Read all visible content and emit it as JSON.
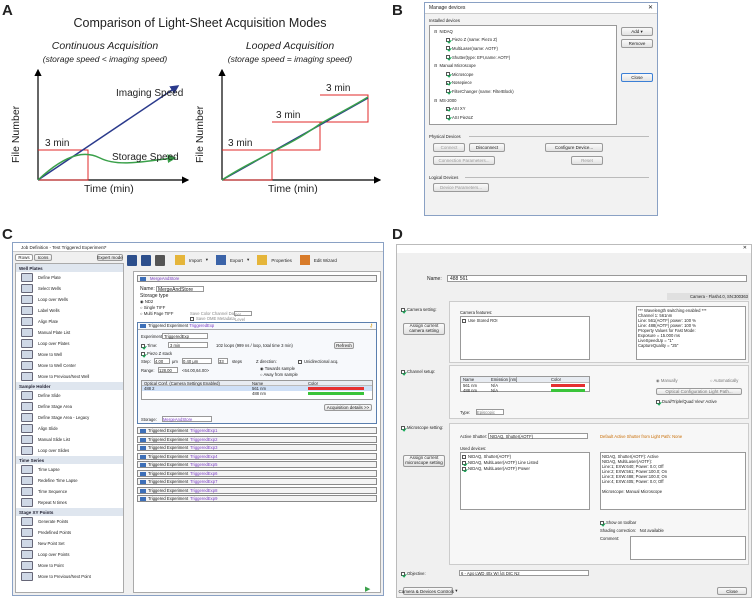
{
  "panels": {
    "a": "A",
    "b": "B",
    "c": "C",
    "d": "D"
  },
  "panelA": {
    "title": "Comparison of Light-Sheet Acquisition Modes",
    "left": {
      "mode": "Continuous Acquisition",
      "cond": "(storage speed < imaging speed)",
      "imaging": "Imaging Speed",
      "storage": "Storage Speed",
      "t1": "3 min"
    },
    "right": {
      "mode": "Looped Acquisition",
      "cond": "(storage speed = imaging speed)",
      "t1": "3 min",
      "t2": "3 min",
      "t3": "3 min"
    },
    "xlabel": "Time (min)",
    "ylabel": "File Number",
    "colors": {
      "imaging": "#2b3a8c",
      "storage": "#3aa04a",
      "steps": "#e02828"
    }
  },
  "panelB": {
    "title": "Manage devices",
    "installed": "Installed devices",
    "tree": [
      {
        "label": "NIDAQ",
        "level": 0
      },
      {
        "label": "Piezo Z (name: Piezo Z)",
        "level": 1
      },
      {
        "label": "MultiLaser(name: AOTF)",
        "level": 1
      },
      {
        "label": "Shutter(type: EPI,name: AOTF)",
        "level": 1
      },
      {
        "label": "Manual Microscope",
        "level": 0
      },
      {
        "label": "Microscope",
        "level": 1
      },
      {
        "label": "Nosepiece",
        "level": 1
      },
      {
        "label": "FilterChanger (name: FilterBlock)",
        "level": 1
      },
      {
        "label": "MS-2000",
        "level": 0
      },
      {
        "label": "ASI XY",
        "level": 1
      },
      {
        "label": "ASI PiezoZ",
        "level": 1
      }
    ],
    "add": "Add",
    "remove": "Remove",
    "close": "Close",
    "physical": "Physical Devices",
    "connect": "Connect",
    "disconnect": "Disconnect",
    "configure": "Configure Device...",
    "connparams": "Connection Parameters...",
    "reset": "Reset",
    "logical": "Logical Devices",
    "devparams": "Device Parameters..."
  },
  "panelC": {
    "title": "Job Definition - Test Triggered Experiment*",
    "tabs": [
      "Rows",
      "Icons"
    ],
    "expert": "Expert mode",
    "toolbar": {
      "import": "Import",
      "export": "Export",
      "properties": "Properties",
      "edit": "Edit Wizard"
    },
    "sections": [
      {
        "name": "Well Plates",
        "items": [
          "Define Plate",
          "Select Wells",
          "Loop over Wells",
          "Label Wells",
          "Align Plate",
          "Manual Plate List",
          "Loop over Plates",
          "Move to Well",
          "Move to Well Center",
          "Move to Previous/Next Well"
        ]
      },
      {
        "name": "Sample Holder",
        "items": [
          "Define Slide",
          "Define Stage Area",
          "Define Stage Area - Legacy",
          "Align Slide",
          "Manual Slide List",
          "Loop over Slides"
        ]
      },
      {
        "name": "Time Series",
        "items": [
          "Time Lapse",
          "Redefine Time Lapse",
          "Time Sequence",
          "Repeat N times"
        ]
      },
      {
        "name": "Stage XY Points",
        "items": [
          "Generate Points",
          "Predefined Points",
          "New Point Set",
          "Loop over Points",
          "Move to Point",
          "Move to Previous/Next Point"
        ]
      }
    ],
    "merge": "MergeAndStore",
    "name_label": "Name:",
    "name_value": "MergeAndStore",
    "storage_type": "Storage type",
    "nd2": "ND2",
    "single": "Single TIFF",
    "multi": "Multi Page TIFF",
    "save_color": "Save Color Channel Data",
    "ome": "Save OME Metadata",
    "perlevel": "per Level",
    "trig_title": "Triggered Experiment",
    "trig_name": "TriggeredExp",
    "experiment_label": "Experiment:",
    "experiment_value": "TriggeredExp",
    "time_label": "Time:",
    "time_value": "3 min",
    "loops": "102 loops (999 ns / loop, total time 3 min)",
    "refresh": "Refresh",
    "zstack": "Piezo Z stack",
    "step_label": "Step:",
    "step_value": "4.00",
    "um": "μm",
    "step_um": "0.40 μm",
    "steps_value": "33",
    "steps_label": "steps",
    "zdir": "Z direction:",
    "unidirectional": "Unidirectional acq.",
    "range_label": "Range:",
    "range_value": "128.00",
    "range_paren": "<64.00,64.00>",
    "towards": "Towards sample",
    "away": "Away from sample",
    "table_head": [
      "Optical Conf. (Camera Settings Enabled)",
      "Name",
      "Color"
    ],
    "table_rows": [
      {
        "conf": "488 2",
        "name": "561 nm",
        "color": "#e53030"
      },
      {
        "conf": "",
        "name": "488 nm",
        "color": "#3ac43a"
      }
    ],
    "acq_details": "Acquisition details >>",
    "storage_label": "Storage:",
    "storage_value": "MergeAndStore",
    "triggered": [
      "TriggeredExp1",
      "TriggeredExp2",
      "TriggeredExp3",
      "TriggeredExp4",
      "TriggeredExp5",
      "TriggeredExp6",
      "TriggeredExp7",
      "TriggeredExp8",
      "TriggeredExp9"
    ]
  },
  "panelD": {
    "name_label": "Name:",
    "name_value": "488 561",
    "camera_info": "Camera - Flash4.0, SN:300363",
    "camera_setting": "Camera setting:",
    "camera_features": "Camera features:",
    "assign_camera": "Assign current camera setting",
    "stored_roi": "Use Stored ROI",
    "info_lines": [
      "*** Wavelength switching enabled ***",
      "Channel 1: 561nm",
      "  Line: 561(AOTF) power: 100 %",
      "  Line: 488(AOTF) power: 100 %",
      "Property Values for Fast Mode:",
      "Exposure = 15.000 ms",
      "LiveSpeedUp = \"1\"",
      "CaptureQuality = \"25\""
    ],
    "channel_setup": "Channel setup:",
    "ch_head": [
      "Name",
      "Emission [nm]",
      "Color"
    ],
    "ch_rows": [
      {
        "name": "561 nm",
        "em": "N/A",
        "color": "#e53030"
      },
      {
        "name": "488 nm",
        "em": "N/A",
        "color": "#3ac43a"
      }
    ],
    "manually": "Manually",
    "automatically": "Automatically",
    "optical_path": "Optical Configuration Light Path...",
    "dual_view": "Dual/Triple/Quad View' Active",
    "type_label": "Type:",
    "type_value": "Episcopic",
    "micro_setting": "Microscope setting:",
    "active_shutter": "Active Shutter:",
    "shutter_value": "NIDAQ, Shutter(AOTF)",
    "default_shutter": "Default Active Shutter from Light Path: None",
    "used_devices": "Used devices:",
    "assign_micro": "Assign current microscope setting",
    "devices": [
      {
        "label": "NIDAQ, Shutter(AOTF)",
        "checked": false
      },
      {
        "label": "NIDAQ, MultiLaser(AOTF) Line Listed",
        "checked": true
      },
      {
        "label": "NIDAQ, MultiLaser(AOTF) Power",
        "checked": true
      }
    ],
    "dev_info": [
      "NIDAQ, Shutter(AOTF): Active",
      "NIDAQ, MultiLaser(AOTF):",
      "  Line:1; EXW:640; Power: 0.0; Off",
      "  Line:2; EXW:561; Power:100.0; On",
      "  Line:3; EXW:488; Power:100.0; On",
      "  Line:4; EXW:405; Power: 0.0; Off",
      "",
      "Microscope: Manual Microscope"
    ],
    "show_toolbar": "Show on toolbar",
    "shading": "Shading correction:",
    "shading_value": "Not available",
    "comment": "Comment:",
    "objective": "Objective:",
    "objective_value": "6 - Apo LWD 40x WI λS DIC N2",
    "cam_dev": "Camera & Devices Controls",
    "close": "Close"
  }
}
